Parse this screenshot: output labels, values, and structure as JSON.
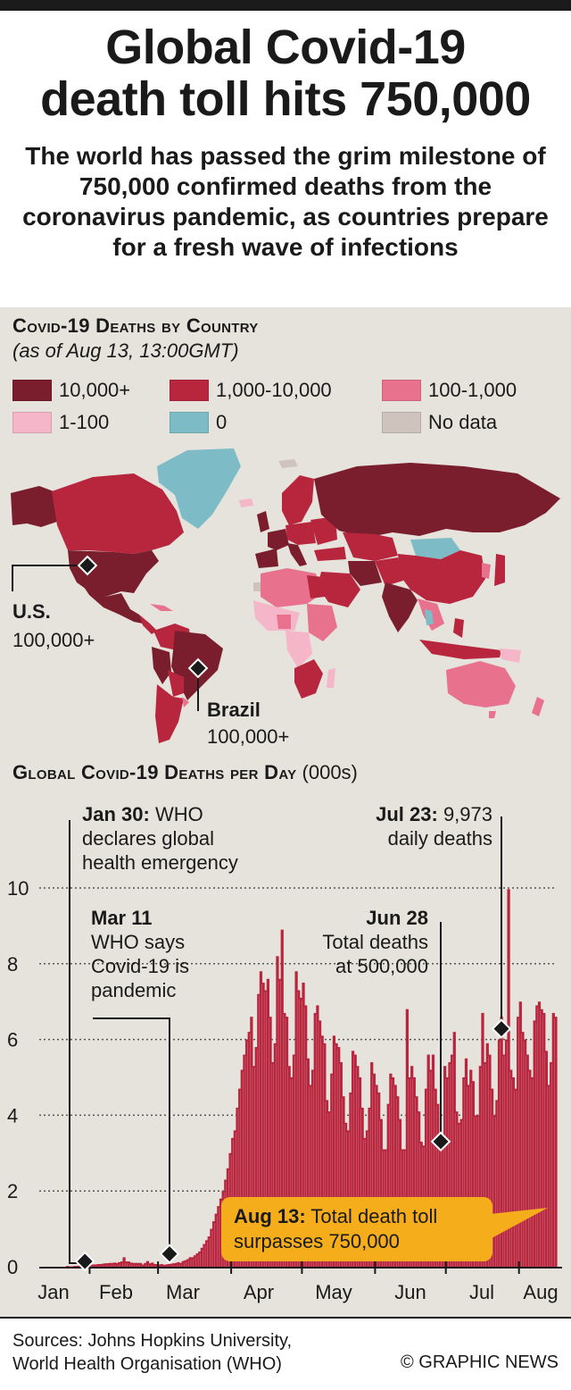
{
  "header": {
    "title_line1": "Global Covid-19",
    "title_line2": "death toll hits 750,000",
    "subtitle": "The world has passed the grim milestone of 750,000 confirmed deaths from the coronavirus pandemic, as countries prepare for a fresh wave of infections"
  },
  "map_section": {
    "heading": "Covid-19 Deaths by Country",
    "asof": "(as of Aug 13, 13:00GMT)",
    "legend": [
      {
        "label": "10,000+",
        "color": "#7a1e2e"
      },
      {
        "label": "1,000-10,000",
        "color": "#b8263e"
      },
      {
        "label": "100-1,000",
        "color": "#e8728e"
      },
      {
        "label": "1-100",
        "color": "#f4b6c8"
      },
      {
        "label": "0",
        "color": "#7dbcc6"
      },
      {
        "label": "No data",
        "color": "#cfc4bd"
      }
    ],
    "us_name": "U.S.",
    "us_value": "100,000+",
    "brazil_name": "Brazil",
    "brazil_value": "100,000+"
  },
  "chart_section": {
    "heading": "Global Covid-19 Deaths per Day",
    "unit": "(000s)"
  },
  "chart_data": {
    "type": "bar",
    "title": "Global Covid-19 Deaths per Day",
    "ylabel": "(000s)",
    "ylim": [
      0,
      10
    ],
    "yticks": [
      "0",
      "2",
      "4",
      "6",
      "8",
      "10"
    ],
    "xticks": [
      "Jan",
      "Feb",
      "Mar",
      "Apr",
      "May",
      "Jun",
      "Jul",
      "Aug"
    ],
    "color": "#b8263e",
    "x_start": "Jan 22",
    "x_end": "Aug 13",
    "values": [
      0.02,
      0.01,
      0.01,
      0.02,
      0.02,
      0.03,
      0.03,
      0.03,
      0.04,
      0.04,
      0.05,
      0.06,
      0.06,
      0.07,
      0.07,
      0.08,
      0.09,
      0.09,
      0.1,
      0.1,
      0.11,
      0.1,
      0.12,
      0.14,
      0.25,
      0.14,
      0.14,
      0.11,
      0.1,
      0.1,
      0.1,
      0.1,
      0.06,
      0.1,
      0.15,
      0.09,
      0.11,
      0.07,
      0.07,
      0.06,
      0.07,
      0.05,
      0.06,
      0.07,
      0.08,
      0.09,
      0.1,
      0.12,
      0.1,
      0.15,
      0.17,
      0.2,
      0.25,
      0.25,
      0.3,
      0.35,
      0.4,
      0.5,
      0.6,
      0.7,
      0.8,
      1.0,
      1.2,
      1.4,
      1.6,
      1.8,
      2.0,
      2.3,
      2.6,
      3.0,
      3.4,
      3.6,
      4.2,
      4.7,
      5.2,
      5.6,
      6.0,
      6.2,
      6.6,
      5.3,
      5.8,
      7.2,
      7.8,
      7.5,
      7.3,
      7.6,
      6.6,
      5.4,
      5.9,
      8.2,
      7.6,
      8.9,
      6.7,
      6.6,
      5.3,
      5.0,
      5.6,
      7.8,
      7.3,
      7.1,
      7.5,
      6.9,
      5.5,
      4.8,
      5.2,
      6.7,
      6.9,
      6.5,
      6.1,
      5.9,
      4.4,
      4.1,
      5.1,
      6.1,
      5.9,
      5.8,
      5.4,
      4.5,
      3.8,
      3.6,
      4.6,
      5.7,
      5.6,
      5.3,
      5.0,
      4.2,
      3.4,
      3.6,
      4.2,
      5.4,
      5.1,
      4.8,
      4.6,
      3.9,
      3.1,
      3.1,
      4.3,
      5.1,
      5.0,
      4.8,
      4.5,
      3.9,
      3.1,
      3.1,
      6.8,
      5.0,
      5.3,
      5.0,
      4.5,
      4.1,
      3.3,
      3.2,
      4.7,
      5.6,
      5.2,
      5.6,
      4.7,
      4.3,
      3.4,
      3.5,
      5.3,
      5.0,
      5.4,
      5.6,
      6.2,
      4.1,
      3.8,
      3.9,
      5.0,
      5.5,
      4.8,
      5.2,
      4.9,
      4.0,
      4.0,
      5.3,
      6.7,
      5.4,
      5.9,
      5.6,
      4.7,
      4.0,
      4.4,
      6.0,
      6.6,
      5.6,
      6.0,
      9.97,
      5.2,
      5.0,
      4.7,
      6.6,
      7.0,
      6.2,
      6.0,
      5.6,
      5.2,
      5.0,
      6.5,
      6.9,
      7.0,
      6.8,
      6.7,
      5.7,
      4.8,
      5.4,
      6.7,
      6.6
    ]
  },
  "annotations": {
    "jan30_date": "Jan 30:",
    "jan30_text1": "WHO",
    "jan30_text2": "declares global",
    "jan30_text3": "health emergency",
    "mar11_date": "Mar 11",
    "mar11_text1": "WHO says",
    "mar11_text2": "Covid-19 is",
    "mar11_text3": "pandemic",
    "jun28_date": "Jun 28",
    "jun28_text1": "Total deaths",
    "jun28_text2": "at 500,000",
    "jul23_date": "Jul 23:",
    "jul23_text1": "9,973",
    "jul23_text2": "daily deaths",
    "aug13_date": "Aug 13:",
    "aug13_text1": "Total death toll",
    "aug13_text2": "surpasses 750,000"
  },
  "footer": {
    "sources1": "Sources: Johns Hopkins University,",
    "sources2": "World Health Organisation (WHO)",
    "credit": "© GRAPHIC NEWS"
  }
}
